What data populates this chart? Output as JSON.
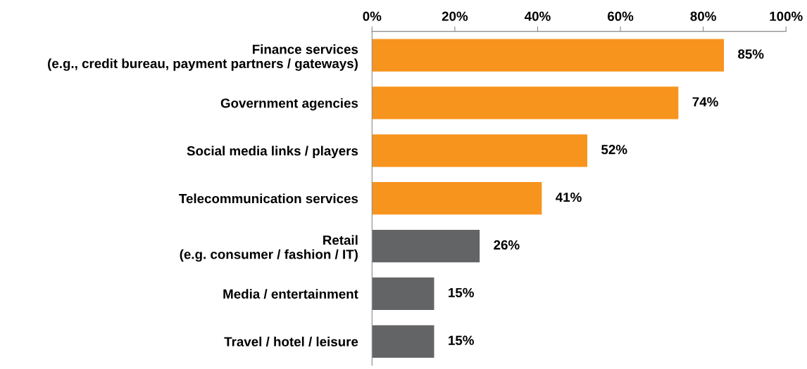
{
  "chart_data": {
    "type": "bar",
    "orientation": "horizontal",
    "categories": [
      "Finance services\n(e.g., credit bureau, payment partners / gateways)",
      "Government agencies",
      "Social media links / players",
      "Telecommunication services",
      "Retail\n(e.g. consumer / fashion / IT)",
      "Media / entertainment",
      "Travel / hotel / leisure"
    ],
    "values": [
      85,
      74,
      52,
      41,
      26,
      15,
      15
    ],
    "colors": [
      "#f7941d",
      "#f7941d",
      "#f7941d",
      "#f7941d",
      "#636466",
      "#636466",
      "#636466"
    ],
    "value_labels": [
      "85%",
      "74%",
      "52%",
      "41%",
      "26%",
      "15%",
      "15%"
    ],
    "xlim": [
      0,
      100
    ],
    "xticks": [
      {
        "value": 0,
        "label": "0%"
      },
      {
        "value": 20,
        "label": "20%"
      },
      {
        "value": 40,
        "label": "40%"
      },
      {
        "value": 60,
        "label": "60%"
      },
      {
        "value": 80,
        "label": "80%"
      },
      {
        "value": 100,
        "label": "100%"
      }
    ],
    "grid": false,
    "legend": false
  }
}
